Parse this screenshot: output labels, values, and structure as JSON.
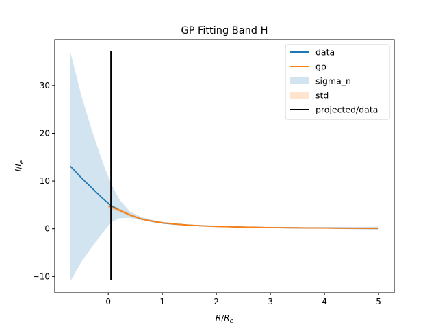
{
  "chart_data": {
    "type": "line",
    "title": "GP Fitting Band H",
    "xlabel": {
      "main": "R",
      "main_sub": "",
      "sep": "/",
      "den": "R",
      "den_sub": "e"
    },
    "ylabel": {
      "main": "I",
      "main_sub": "",
      "sep": "/",
      "den": "I",
      "den_sub": "e"
    },
    "xlim": [
      -0.99,
      5.29
    ],
    "ylim": [
      -13.4,
      39.6
    ],
    "xticks": [
      0,
      1,
      2,
      3,
      4,
      5
    ],
    "yticks": [
      -10,
      0,
      10,
      20,
      30
    ],
    "xtick_labels": [
      "0",
      "1",
      "2",
      "3",
      "4",
      "5"
    ],
    "ytick_labels": [
      "−10",
      "0",
      "10",
      "20",
      "30"
    ],
    "grid": false,
    "legend_position": "top-right",
    "colors": {
      "data": "#1f77b4",
      "gp": "#ff7f0e",
      "sigma_n": "#1f77b4",
      "std": "#ff7f0e",
      "projected": "#000000"
    },
    "series": [
      {
        "name": "data",
        "kind": "line",
        "x": [
          -0.7,
          -0.5,
          -0.3,
          -0.1,
          0.05,
          0.2,
          0.4,
          0.6,
          0.8,
          1.0,
          1.25,
          1.5,
          1.75,
          2.0,
          2.5,
          3.0,
          3.5,
          4.0,
          4.5,
          5.0
        ],
        "y": [
          13.1,
          10.7,
          8.5,
          6.3,
          4.9,
          3.9,
          2.9,
          2.1,
          1.6,
          1.2,
          0.95,
          0.75,
          0.6,
          0.5,
          0.35,
          0.25,
          0.2,
          0.15,
          0.12,
          0.1
        ]
      },
      {
        "name": "gp",
        "kind": "line",
        "x": [
          0.0,
          0.2,
          0.4,
          0.6,
          0.8,
          1.0,
          1.25,
          1.5,
          1.75,
          2.0,
          2.5,
          3.0,
          3.5,
          4.0,
          4.5,
          5.0
        ],
        "y": [
          4.8,
          3.9,
          2.9,
          2.1,
          1.6,
          1.25,
          0.95,
          0.75,
          0.6,
          0.5,
          0.35,
          0.25,
          0.2,
          0.15,
          0.12,
          0.1
        ]
      },
      {
        "name": "sigma_n",
        "kind": "band",
        "x": [
          -0.7,
          -0.5,
          -0.3,
          -0.1,
          0.05,
          0.2,
          0.4,
          0.6,
          0.8,
          1.0,
          1.5,
          2.0,
          3.0,
          4.0,
          5.0
        ],
        "y_lower": [
          -11.0,
          -7.0,
          -3.8,
          -0.8,
          1.3,
          2.2,
          2.3,
          1.8,
          1.4,
          1.1,
          0.7,
          0.45,
          0.2,
          0.05,
          -0.2
        ],
        "y_upper": [
          37.0,
          28.0,
          20.5,
          13.8,
          9.5,
          6.2,
          3.6,
          2.5,
          1.9,
          1.45,
          0.85,
          0.55,
          0.35,
          0.35,
          0.45
        ]
      },
      {
        "name": "std",
        "kind": "band",
        "x": [
          0.0,
          0.2,
          0.4,
          0.6,
          0.8,
          1.0,
          1.5,
          2.0,
          3.0,
          4.0,
          5.0
        ],
        "y_lower": [
          4.3,
          3.5,
          2.6,
          1.9,
          1.4,
          1.05,
          0.6,
          0.35,
          0.1,
          0.0,
          -0.1
        ],
        "y_upper": [
          5.3,
          4.3,
          3.2,
          2.3,
          1.8,
          1.45,
          0.9,
          0.65,
          0.4,
          0.3,
          0.3
        ]
      },
      {
        "name": "projected/data",
        "kind": "vline",
        "x": 0.05,
        "y_range": [
          -10.8,
          37.2
        ]
      }
    ]
  }
}
